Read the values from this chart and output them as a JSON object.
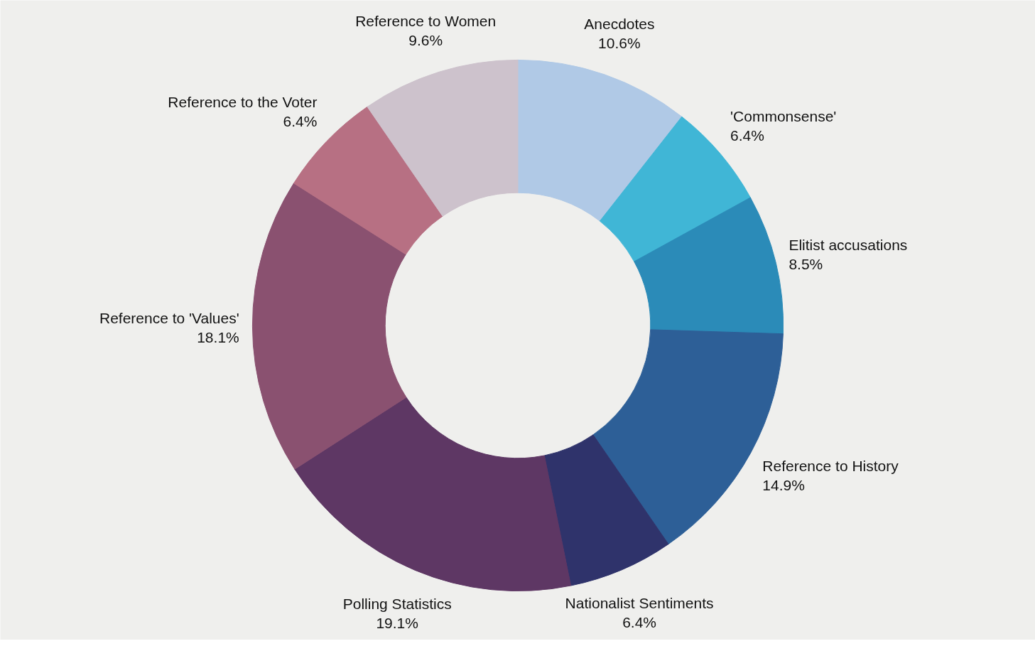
{
  "chart_data": {
    "type": "donut",
    "categories": [
      "Anecdotes",
      "'Commonsense'",
      "Elitist accusations",
      "Reference to History",
      "Nationalist Sentiments",
      "Polling Statistics",
      "Reference to 'Values'",
      "Reference to the Voter",
      "Reference to Women"
    ],
    "values": [
      10.6,
      6.4,
      8.5,
      14.9,
      6.4,
      19.1,
      18.1,
      6.4,
      9.6
    ],
    "value_labels": [
      "10.6%",
      "6.4%",
      "8.5%",
      "14.9%",
      "6.4%",
      "19.1%",
      "18.1%",
      "6.4%",
      "9.6%"
    ],
    "colors": [
      "#b0c9e6",
      "#40b6d6",
      "#2b8bb8",
      "#2d5f97",
      "#2f336b",
      "#5e3764",
      "#8a5170",
      "#b77083",
      "#cdc2cc"
    ]
  }
}
